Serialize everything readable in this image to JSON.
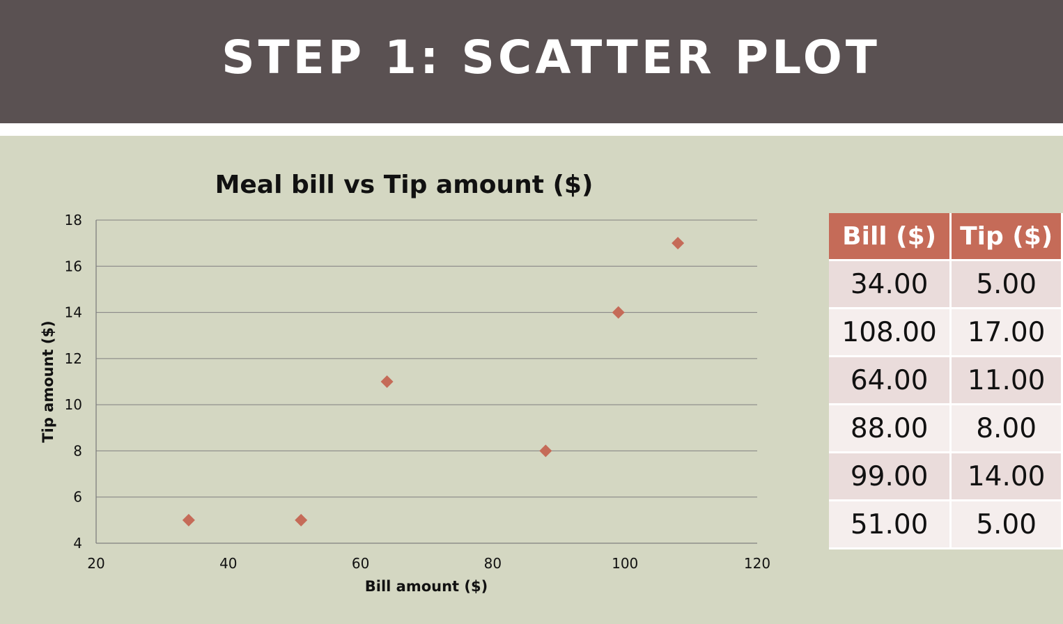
{
  "header": {
    "title": "STEP 1: SCATTER PLOT"
  },
  "colors": {
    "header_bg": "#5a5152",
    "slide_bg": "#d4d7c2",
    "accent": "#c56b58"
  },
  "chart_data": {
    "type": "scatter",
    "title": "Meal bill vs Tip amount ($)",
    "xlabel": "Bill amount ($)",
    "ylabel": "Tip amount ($)",
    "xlim": [
      20,
      120
    ],
    "ylim": [
      4,
      18
    ],
    "xticks": [
      20,
      40,
      60,
      80,
      100,
      120
    ],
    "yticks": [
      4,
      6,
      8,
      10,
      12,
      14,
      16,
      18
    ],
    "grid": true,
    "marker": "diamond",
    "color": "#c56b58",
    "points": [
      {
        "x": 34,
        "y": 5
      },
      {
        "x": 108,
        "y": 17
      },
      {
        "x": 64,
        "y": 11
      },
      {
        "x": 88,
        "y": 8
      },
      {
        "x": 99,
        "y": 14
      },
      {
        "x": 51,
        "y": 5
      }
    ]
  },
  "table": {
    "headers": [
      "Bill ($)",
      "Tip ($)"
    ],
    "rows": [
      [
        "34.00",
        "5.00"
      ],
      [
        "108.00",
        "17.00"
      ],
      [
        "64.00",
        "11.00"
      ],
      [
        "88.00",
        "8.00"
      ],
      [
        "99.00",
        "14.00"
      ],
      [
        "51.00",
        "5.00"
      ]
    ]
  }
}
